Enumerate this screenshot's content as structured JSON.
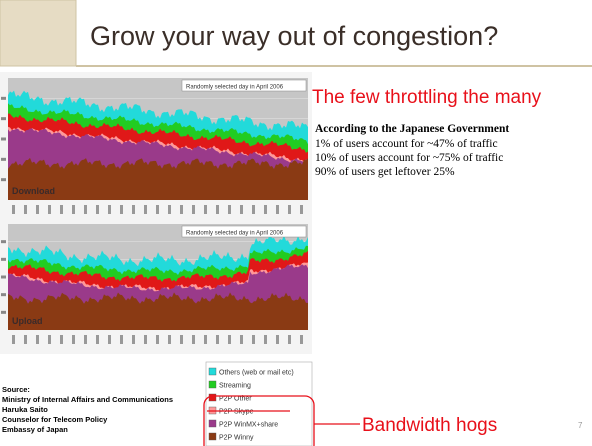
{
  "title": "Grow your way out of congestion?",
  "figure": {
    "download_chart": {
      "note": "Randomly selected day in April 2006",
      "label": "Download"
    },
    "upload_chart": {
      "note": "Randomly selected day in April 2006",
      "label": "Upload"
    },
    "legend": [
      "Others (web or mail etc)",
      "Streaming",
      "P2P Other",
      "P2P Skype",
      "P2P WinMX+share",
      "P2P Winny"
    ]
  },
  "source": [
    "Source:",
    "Ministry of Internal Affairs and Communications",
    "Haruka Saito",
    "Counselor for Telecom Policy",
    "Embassy of Japan"
  ],
  "subtitle": "The few throttling the many",
  "body": {
    "heading": "According to the Japanese Government",
    "lines": [
      "1% of users account for ~47% of traffic",
      "10% of users account for ~75% of traffic",
      "90% of users get leftover 25%"
    ]
  },
  "callout": "Bandwidth hogs",
  "page_number": "7"
}
